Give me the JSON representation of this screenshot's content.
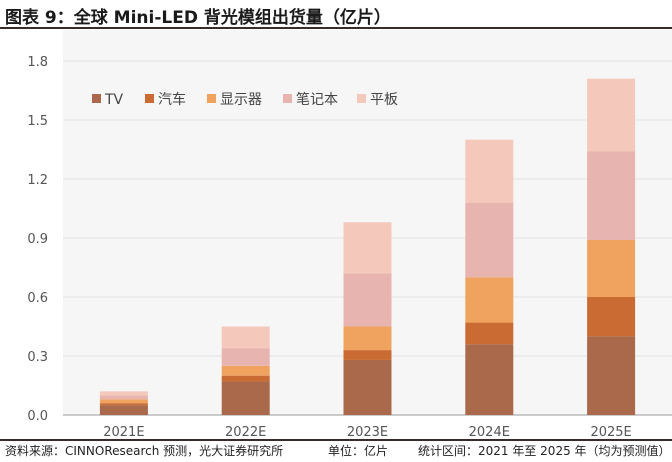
{
  "header": {
    "title": "图表 9：全球 Mini-LED 背光模组出货量（亿片）"
  },
  "footer": {
    "source": "资料来源：CINNOResearch 预测，光大证券研究所",
    "unit": "单位：亿片",
    "range": "统计区间：2021 年至 2025 年（均为预测值）"
  },
  "chart_data": {
    "type": "bar",
    "stacked": true,
    "categories": [
      "2021E",
      "2022E",
      "2023E",
      "2024E",
      "2025E"
    ],
    "ylim": [
      0,
      1.8
    ],
    "yticks": [
      "0.0",
      "0.3",
      "0.6",
      "0.9",
      "1.2",
      "1.5",
      "1.8"
    ],
    "title": "",
    "xlabel": "",
    "ylabel": "",
    "legend_position": "top-left",
    "grid": true,
    "series": [
      {
        "name": "TV",
        "color": "#a9694a",
        "values": [
          0.05,
          0.17,
          0.28,
          0.36,
          0.4
        ]
      },
      {
        "name": "汽车",
        "color": "#c96b32",
        "values": [
          0.01,
          0.03,
          0.05,
          0.11,
          0.2
        ]
      },
      {
        "name": "显示器",
        "color": "#f0a35f",
        "values": [
          0.02,
          0.05,
          0.12,
          0.23,
          0.29
        ]
      },
      {
        "name": "笔记本",
        "color": "#e8b4b0",
        "values": [
          0.02,
          0.09,
          0.27,
          0.38,
          0.45
        ]
      },
      {
        "name": "平板",
        "color": "#f4c9bc",
        "values": [
          0.02,
          0.11,
          0.26,
          0.32,
          0.37
        ]
      }
    ]
  }
}
